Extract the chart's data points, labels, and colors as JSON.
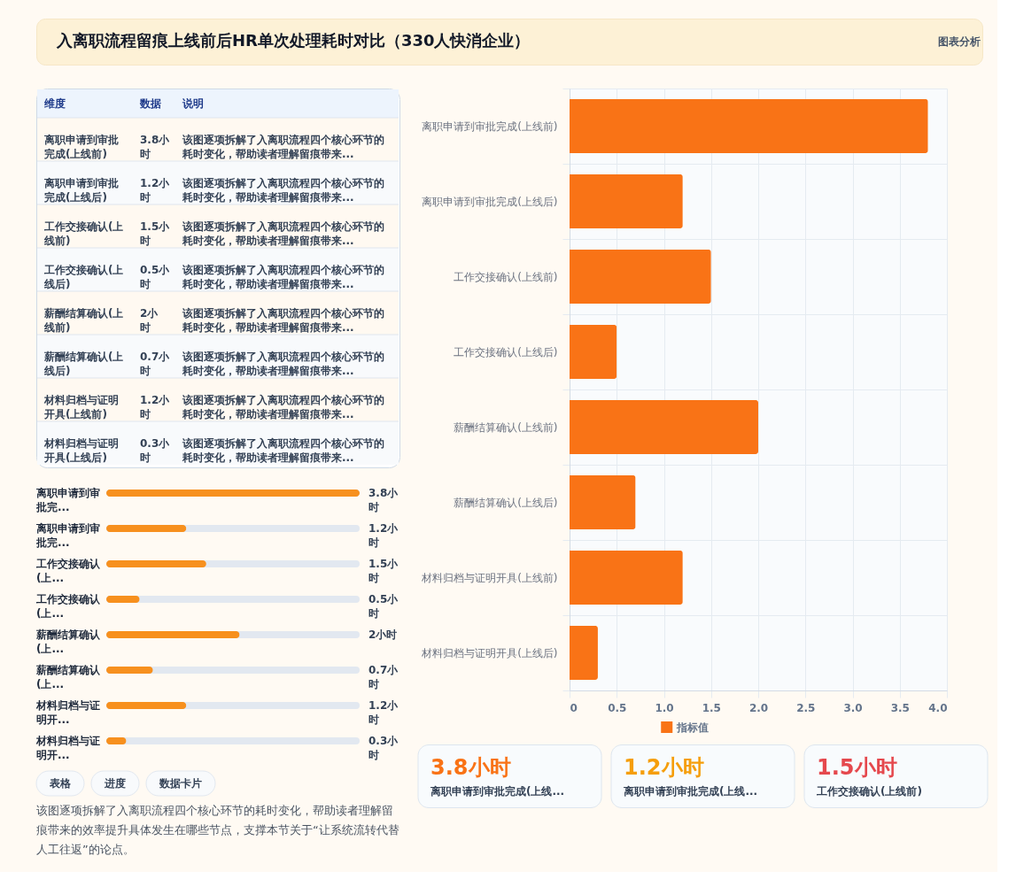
{
  "chart_data": [
    {
      "type": "other",
      "title": "入离职流程留痕上线前后HR单次处理耗时对比（330人快消企业）",
      "annotations": [
        "图表分析"
      ]
    },
    {
      "type": "other",
      "categories": [
        "离职申请到审批完成(上线前)",
        "离职申请到审批完成(上线后)",
        "工作交接确认(上线前)",
        "工作交接确认(上线后)",
        "薪酬结算确认(上线前)",
        "薪酬结算确认(上线后)",
        "材料归档与证明开具(上线前)",
        "材料归档与证明开具(上线后)"
      ],
      "value_labels": [
        "3.8小时",
        "1.2小时",
        "1.5小时",
        "0.5小时",
        "2小时",
        "0.7小时",
        "1.2小时",
        "0.3小时"
      ],
      "annotations": [
        "维度",
        "数据",
        "说明",
        "该图逐项拆解了入离职流程四个核心环节的耗时变化，帮助读者理解留痕带来...",
        "该图逐项拆解了入离职流程四个核心环节的耗时变化，帮助读者理解留痕带来...",
        "该图逐项拆解了入离职流程四个核心环节的耗时变化，帮助读者理解留痕带来...",
        "该图逐项拆解了入离职流程四个核心环节的耗时变化，帮助读者理解留痕带来...",
        "该图逐项拆解了入离职流程四个核心环节的耗时变化，帮助读者理解留痕带来...",
        "该图逐项拆解了入离职流程四个核心环节的耗时变化，帮助读者理解留痕带来...",
        "该图逐项拆解了入离职流程四个核心环节的耗时变化，帮助读者理解留痕带来...",
        "该图逐项拆解了入离职流程四个核心环节的耗时变化，帮助读者理解留痕带来..."
      ]
    },
    {
      "type": "bar",
      "orientation": "horizontal",
      "categories": [
        "离职申请到审批完...",
        "离职申请到审批完...",
        "工作交接确认(上...",
        "工作交接确认(上...",
        "薪酬结算确认(上...",
        "薪酬结算确认(上...",
        "材料归档与证明开...",
        "材料归档与证明开..."
      ],
      "values": [
        3.8,
        1.2,
        1.5,
        0.5,
        2,
        0.7,
        1.2,
        0.3
      ],
      "value_labels": [
        "3.8小时",
        "1.2小时",
        "1.5小时",
        "0.5小时",
        "2小时",
        "0.7小时",
        "1.2小时",
        "0.3小时"
      ],
      "color": "#f7901e"
    },
    {
      "type": "other",
      "annotations": [
        "表格",
        "进度",
        "数据卡片",
        "该图逐项拆解了入离职流程四个核心环节的耗时变化，帮助读者理解留痕带来的效率提升具体发生在哪些节点，支撑本节关于“让系统流转代替人工往返”的论点。"
      ]
    },
    {
      "type": "bar",
      "orientation": "horizontal",
      "categories": [
        "离职申请到审批完成(上线前)",
        "离职申请到审批完成(上线后)",
        "工作交接确认(上线前)",
        "工作交接确认(上线后)",
        "薪酬结算确认(上线前)",
        "薪酬结算确认(上线后)",
        "材料归档与证明开具(上线前)",
        "材料归档与证明开具(上线后)"
      ],
      "series": [
        {
          "name": "指标值",
          "color": "#f97316",
          "values": [
            3.8,
            1.2,
            1.5,
            0.5,
            2,
            0.7,
            1.2,
            0.3
          ]
        }
      ],
      "xlim": [
        0,
        4
      ],
      "xticks": [
        0,
        0.5,
        {
          "value": 1,
          "label": "1.0"
        },
        1.5,
        {
          "value": 2,
          "label": "2.0"
        },
        2.5,
        {
          "value": 3,
          "label": "3.0"
        },
        3.5,
        {
          "value": 4,
          "label": "4.0"
        }
      ],
      "grid": true,
      "legend": "bottom"
    },
    {
      "type": "other",
      "annotations": [
        "3.8小时",
        "离职申请到审批完成(上线...",
        "1.2小时",
        "离职申请到审批完成(上线...",
        "1.5小时",
        "工作交接确认(上线前)"
      ]
    }
  ]
}
